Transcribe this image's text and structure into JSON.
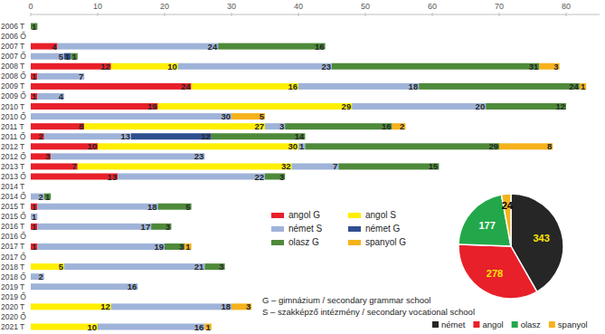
{
  "chart_data": [
    {
      "type": "bar",
      "orientation": "horizontal",
      "stacked": true,
      "data_labels": true,
      "grid": false,
      "legend": "bottom-right",
      "categories": [
        "2006 T",
        "2006 Ő",
        "2007 T",
        "2007 Ő",
        "2008 T",
        "2008 Ő",
        "2009 T",
        "2009 Ő",
        "2010 T",
        "2010 Ő",
        "2011 T",
        "2011 Ő",
        "2012 T",
        "2012 Ő",
        "2013 T",
        "2013 Ő",
        "2014 T",
        "2014 Ő",
        "2015 T",
        "2015 Ő",
        "2016 T",
        "2016 Ő",
        "2017 T",
        "2017 Ő",
        "2018 T",
        "2018 Ő",
        "2019 T",
        "2019 Ő",
        "2020 T",
        "2020 Ő",
        "2021 T"
      ],
      "xlim": [
        0,
        85
      ],
      "xticks": [
        0,
        10,
        20,
        30,
        40,
        50,
        60,
        70,
        80
      ],
      "series": [
        {
          "name": "angol G",
          "color": "#e8202a",
          "values": [
            null,
            null,
            4,
            null,
            12,
            1,
            24,
            1,
            19,
            null,
            8,
            2,
            10,
            3,
            7,
            13,
            null,
            null,
            1,
            null,
            1,
            null,
            1,
            null,
            null,
            null,
            null,
            null,
            null,
            null,
            null
          ]
        },
        {
          "name": "angol S",
          "color": "#ffef00",
          "values": [
            null,
            null,
            null,
            null,
            10,
            null,
            16,
            null,
            29,
            null,
            27,
            null,
            30,
            null,
            32,
            null,
            null,
            null,
            null,
            null,
            null,
            null,
            null,
            null,
            5,
            null,
            null,
            null,
            12,
            null,
            10
          ]
        },
        {
          "name": "német S",
          "color": "#9fb3d9",
          "values": [
            null,
            null,
            24,
            5,
            23,
            7,
            18,
            4,
            20,
            30,
            3,
            13,
            1,
            23,
            7,
            22,
            null,
            2,
            18,
            1,
            17,
            null,
            19,
            null,
            21,
            2,
            16,
            null,
            18,
            null,
            16
          ]
        },
        {
          "name": "német G",
          "color": "#2f4f8f",
          "values": [
            null,
            null,
            null,
            1,
            null,
            null,
            null,
            null,
            null,
            null,
            null,
            12,
            null,
            null,
            null,
            null,
            null,
            null,
            null,
            null,
            null,
            null,
            null,
            null,
            null,
            null,
            null,
            null,
            null,
            null,
            null
          ]
        },
        {
          "name": "olasz G",
          "color": "#4e8a3a",
          "values": [
            1,
            null,
            16,
            1,
            31,
            null,
            24,
            null,
            12,
            null,
            16,
            14,
            29,
            null,
            15,
            3,
            null,
            1,
            5,
            null,
            3,
            null,
            3,
            null,
            3,
            null,
            null,
            null,
            null,
            null,
            null
          ]
        },
        {
          "name": "spanyol G",
          "color": "#f5b21b",
          "values": [
            null,
            null,
            null,
            null,
            3,
            null,
            1,
            null,
            null,
            5,
            2,
            null,
            8,
            null,
            null,
            null,
            null,
            null,
            null,
            null,
            null,
            null,
            1,
            null,
            null,
            null,
            null,
            null,
            3,
            null,
            1
          ]
        }
      ],
      "annotations": [
        "G – gimnázium / secondary grammar school",
        "S – szakképző intézmény / secondary vocational school"
      ]
    },
    {
      "type": "pie",
      "data_labels": true,
      "legend": "bottom",
      "categories": [
        "német",
        "angol",
        "olasz",
        "spanyol"
      ],
      "values": [
        343,
        278,
        177,
        24
      ],
      "colors": [
        "#262626",
        "#e8202a",
        "#22a84a",
        "#f5b21b"
      ]
    }
  ]
}
